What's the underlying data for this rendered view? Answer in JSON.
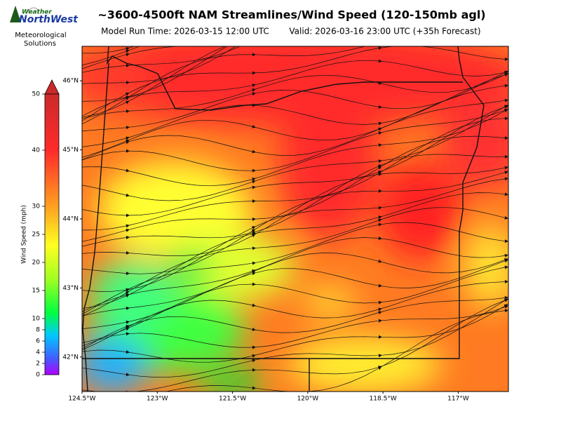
{
  "header": {
    "title": "~3600-4500ft NAM Streamlines/Wind Speed (120-150mb agl)",
    "model_run": "Model Run Time: 2026-03-15 12:00 UTC",
    "valid": "Valid: 2026-03-16 23:00 UTC  (+35h Forecast)"
  },
  "logo": {
    "brand_top": "Weather",
    "brand_main": "NorthWest",
    "tagline": [
      "Meteorological",
      "Solutions"
    ]
  },
  "colorbar": {
    "label": "Wind Speed (mph)",
    "range": [
      0,
      50
    ],
    "ticks": [
      0,
      2,
      4,
      6,
      8,
      10,
      15,
      20,
      25,
      30,
      40,
      50
    ]
  },
  "map": {
    "lon_range": [
      -124.5,
      -116
    ],
    "lat_range": [
      41.5,
      46.5
    ],
    "lon_ticks": [
      {
        "value": -124.5,
        "label": "124.5°W"
      },
      {
        "value": -123,
        "label": "123°W"
      },
      {
        "value": -121.5,
        "label": "121.5°W"
      },
      {
        "value": -120,
        "label": "120°W"
      },
      {
        "value": -118.5,
        "label": "118.5°W"
      },
      {
        "value": -117,
        "label": "117°W"
      }
    ],
    "lat_ticks": [
      {
        "value": 46,
        "label": "46°N"
      },
      {
        "value": 45,
        "label": "45°N"
      },
      {
        "value": 44,
        "label": "44°N"
      },
      {
        "value": 43,
        "label": "43°N"
      },
      {
        "value": 42,
        "label": "42°N"
      }
    ]
  }
}
